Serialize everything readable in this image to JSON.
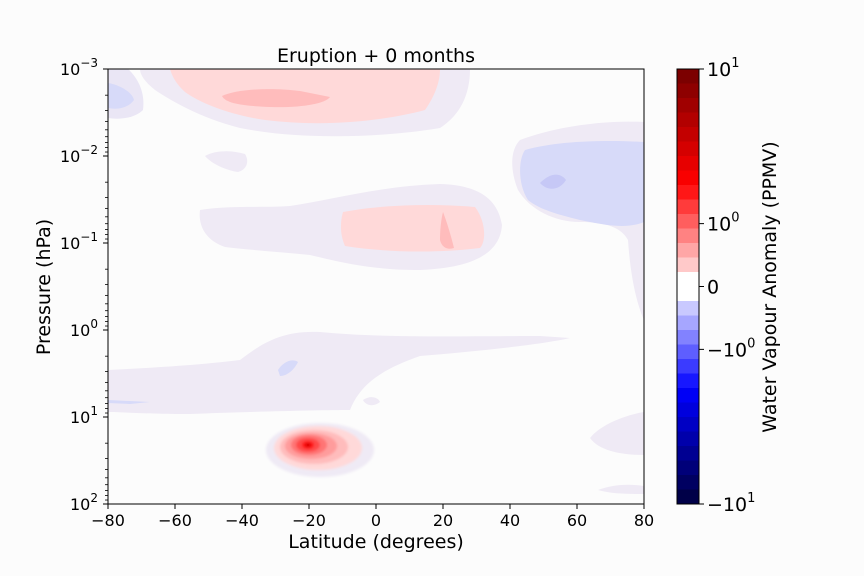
{
  "chart_data": {
    "type": "heatmap",
    "title": "Eruption + 0 months",
    "xlabel": "Latitude (degrees)",
    "ylabel": "Pressure (hPa)",
    "xlim": [
      -80,
      80
    ],
    "ylim_log10": [
      -3,
      2
    ],
    "y_inverted": true,
    "y_scale": "log",
    "x_ticks": [
      {
        "value": -80,
        "label": "−80"
      },
      {
        "value": -60,
        "label": "−60"
      },
      {
        "value": -40,
        "label": "−40"
      },
      {
        "value": -20,
        "label": "−20"
      },
      {
        "value": 0,
        "label": "0"
      },
      {
        "value": 20,
        "label": "20"
      },
      {
        "value": 40,
        "label": "40"
      },
      {
        "value": 60,
        "label": "60"
      },
      {
        "value": 80,
        "label": "80"
      }
    ],
    "y_ticks": [
      {
        "exp": -3,
        "base": "10",
        "sup": "−3"
      },
      {
        "exp": -2,
        "base": "10",
        "sup": "−2"
      },
      {
        "exp": -1,
        "base": "10",
        "sup": "−1"
      },
      {
        "exp": 0,
        "base": "10",
        "sup": "0"
      },
      {
        "exp": 1,
        "base": "10",
        "sup": "1"
      },
      {
        "exp": 2,
        "base": "10",
        "sup": "2"
      }
    ],
    "colorbar": {
      "label": "Water Vapour Anomaly (PPMV)",
      "scale": "symlog",
      "range": [
        -10,
        10
      ],
      "ticks": [
        {
          "value": 10,
          "base": "10",
          "sup": "1",
          "prefix": ""
        },
        {
          "value": 1,
          "base": "10",
          "sup": "0",
          "prefix": ""
        },
        {
          "value": 0,
          "base": "0",
          "sup": "",
          "prefix": ""
        },
        {
          "value": -1,
          "base": "10",
          "sup": "0",
          "prefix": "−"
        },
        {
          "value": -10,
          "base": "10",
          "sup": "1",
          "prefix": "−"
        }
      ],
      "cmap": "seismic"
    },
    "features": [
      {
        "name": "upper-positive-band",
        "lat": [
          -62,
          18
        ],
        "log_p": [
          -3,
          -2.7
        ],
        "value": 0.9
      },
      {
        "name": "upper-positive-core",
        "lat": [
          -45,
          -25
        ],
        "log_p": [
          -2.9,
          -2.45
        ],
        "value": 1.8
      },
      {
        "name": "upper-negative-patch",
        "lat": [
          -80,
          -70
        ],
        "log_p": [
          -2.8,
          -2.35
        ],
        "value": -0.6
      },
      {
        "name": "mid-positive-band",
        "lat": [
          -10,
          33
        ],
        "log_p": [
          -1.3,
          -0.95
        ],
        "value": 0.9
      },
      {
        "name": "high-lat-negative",
        "lat": [
          40,
          80
        ],
        "log_p": [
          -2.3,
          -1.55
        ],
        "value": -0.6
      },
      {
        "name": "lower-positive-blob",
        "lat": [
          -27,
          0
        ],
        "log_p": [
          1.4,
          1.95
        ],
        "value": 8
      },
      {
        "name": "lower-weak-negative-band",
        "lat": [
          -80,
          80
        ],
        "log_p": [
          0.1,
          1
        ],
        "value": -0.1
      }
    ]
  }
}
